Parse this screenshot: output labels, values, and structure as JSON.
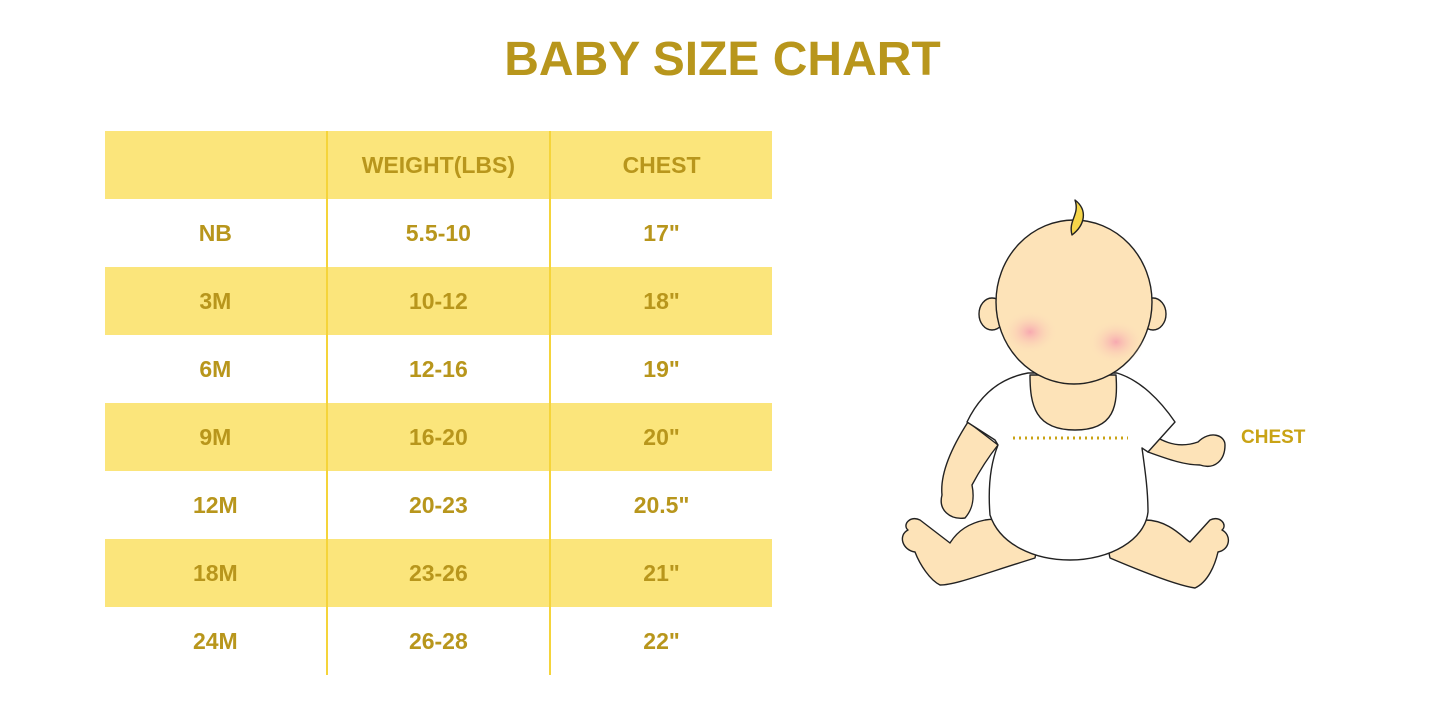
{
  "title": "BABY SIZE CHART",
  "table": {
    "headers": [
      "",
      "WEIGHT(LBS)",
      "CHEST"
    ],
    "rows": [
      [
        "NB",
        "5.5-10",
        "17\""
      ],
      [
        "3M",
        "10-12",
        "18\""
      ],
      [
        "6M",
        "12-16",
        "19\""
      ],
      [
        "9M",
        "16-20",
        "20\""
      ],
      [
        "12M",
        "20-23",
        "20.5\""
      ],
      [
        "18M",
        "23-26",
        "21\""
      ],
      [
        "24M",
        "26-28",
        "22\""
      ]
    ]
  },
  "figure": {
    "chest_label": "CHEST",
    "icon": "baby-illustration"
  },
  "colors": {
    "text": "#b8961c",
    "stripe": "#fbe57b",
    "divider": "#f5d43a",
    "skin": "#fde3b8"
  }
}
